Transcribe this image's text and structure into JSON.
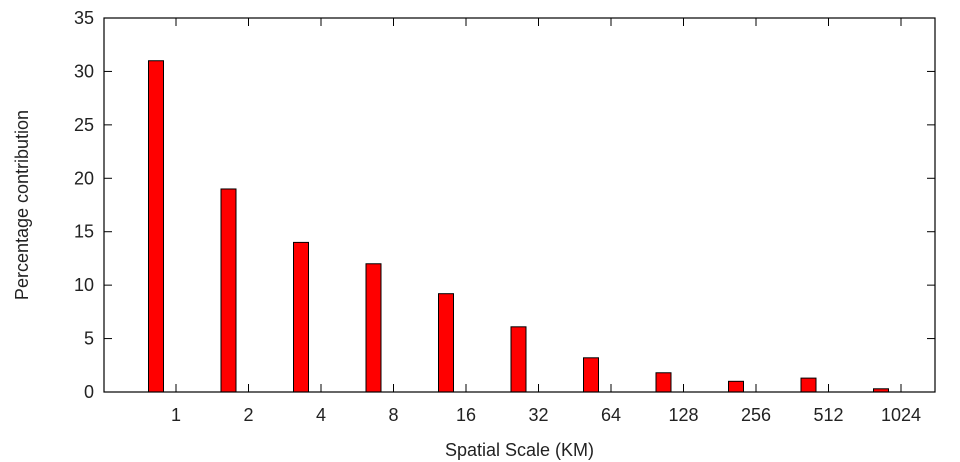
{
  "chart_data": {
    "type": "bar",
    "title": "",
    "xlabel": "Spatial Scale (KM)",
    "ylabel": "Percentage contribution",
    "categories": [
      "1",
      "2",
      "4",
      "8",
      "16",
      "32",
      "64",
      "128",
      "256",
      "512",
      "1024"
    ],
    "series": [
      {
        "values": [
          31,
          19,
          14,
          12,
          9.2,
          6.1,
          3.2,
          1.8,
          1.0,
          1.3,
          0.3
        ]
      }
    ],
    "ylim": [
      0,
      35
    ],
    "yticks": [
      0,
      5,
      10,
      15,
      20,
      25,
      30,
      35
    ],
    "grid": false,
    "legend": "none",
    "bar_color": "#ff0000"
  }
}
